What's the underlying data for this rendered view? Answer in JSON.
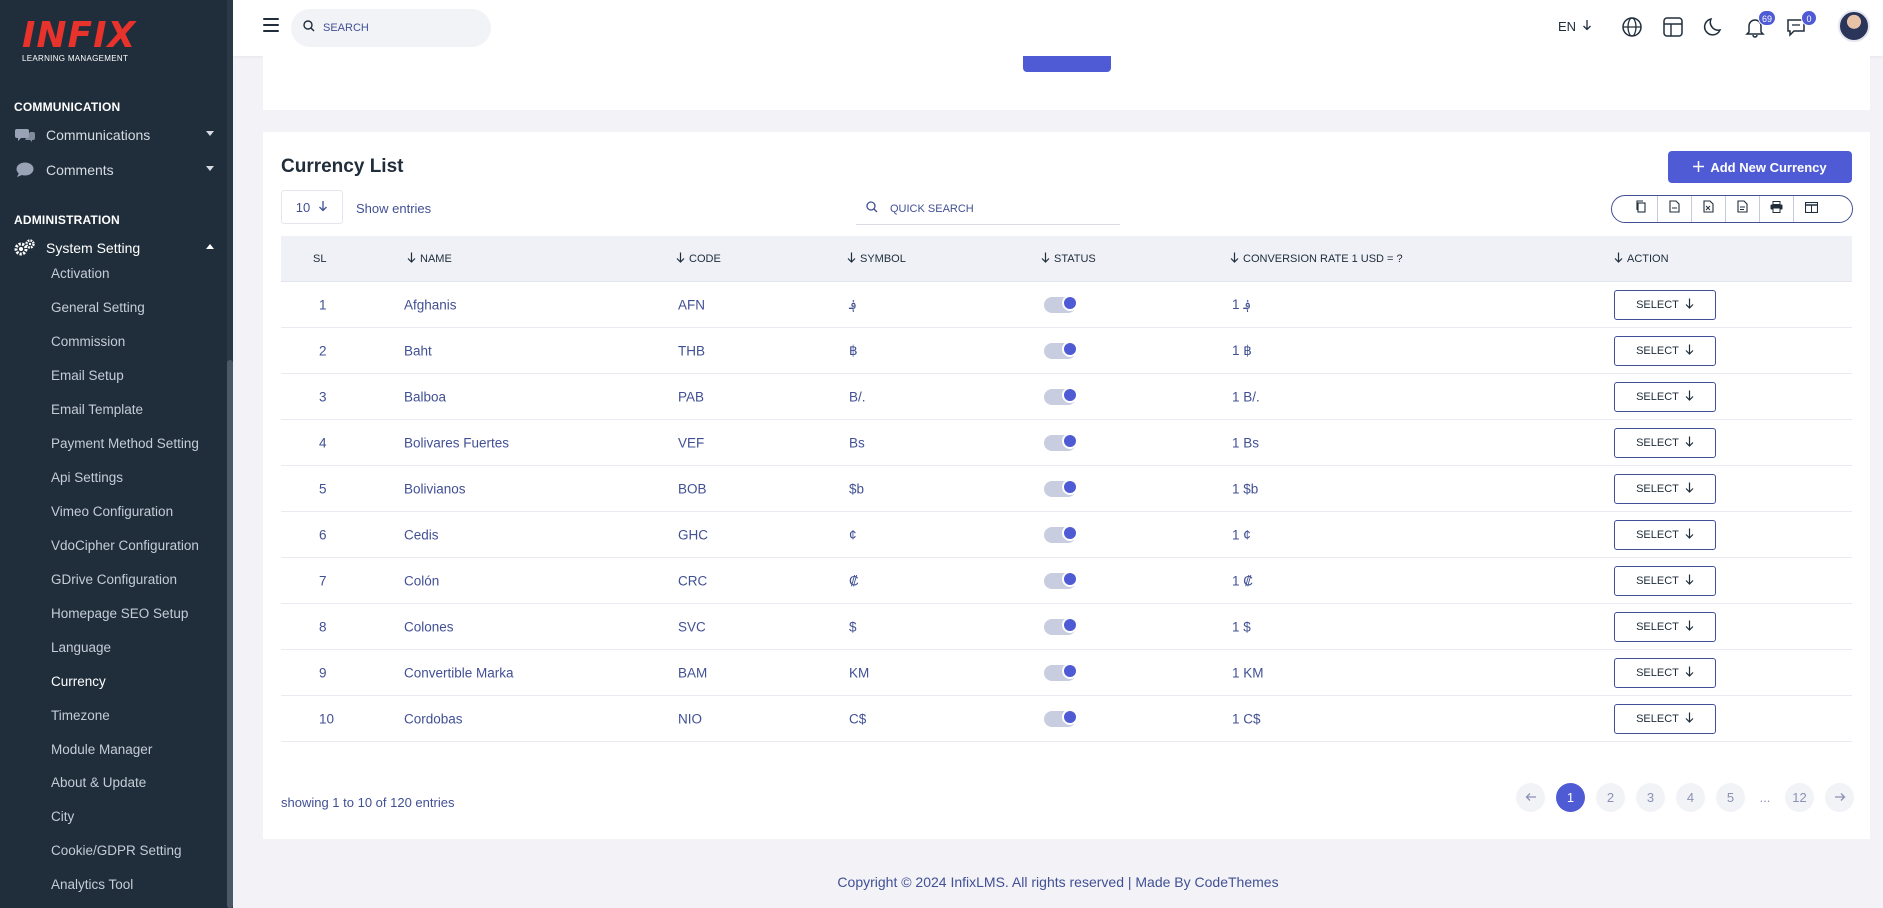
{
  "brand": {
    "logo_main": "INFIX",
    "logo_sub": "LEARNING MANAGEMENT"
  },
  "sidebar": {
    "sections": [
      {
        "title": "COMMUNICATION"
      },
      {
        "title": "ADMINISTRATION"
      }
    ],
    "communication_items": [
      {
        "label": "Communications",
        "icon": "chat-bubbles-icon"
      },
      {
        "label": "Comments",
        "icon": "comment-icon"
      }
    ],
    "system_setting": {
      "label": "System Setting",
      "icon": "gears-icon"
    },
    "sub_items": [
      "Activation",
      "General Setting",
      "Commission",
      "Email Setup",
      "Email Template",
      "Payment Method Setting",
      "Api Settings",
      "Vimeo Configuration",
      "VdoCipher Configuration",
      "GDrive Configuration",
      "Homepage SEO Setup",
      "Language",
      "Currency",
      "Timezone",
      "Module Manager",
      "About & Update",
      "City",
      "Cookie/GDPR Setting",
      "Analytics Tool"
    ],
    "active_sub_item": "Currency"
  },
  "header": {
    "search_placeholder": "SEARCH",
    "language": "EN",
    "notifications_count": "69",
    "messages_count": "0"
  },
  "card": {
    "title": "Currency List",
    "add_button": "Add New Currency",
    "entries_value": "10",
    "entries_label": "Show entries",
    "quick_search_placeholder": "QUICK SEARCH",
    "export_icons": [
      "copy-icon",
      "csv-icon",
      "excel-icon",
      "pdf-icon",
      "print-icon",
      "columns-icon"
    ]
  },
  "table": {
    "headers": {
      "sl": "SL",
      "name": "NAME",
      "code": "CODE",
      "symbol": "SYMBOL",
      "status": "STATUS",
      "rate": "CONVERSION RATE 1 USD = ?",
      "action": "ACTION"
    },
    "rows": [
      {
        "sl": "1",
        "name": "Afghanis",
        "code": "AFN",
        "symbol": "؋",
        "rate": "1 ؋",
        "status": true
      },
      {
        "sl": "2",
        "name": "Baht",
        "code": "THB",
        "symbol": "฿",
        "rate": "1 ฿",
        "status": true
      },
      {
        "sl": "3",
        "name": "Balboa",
        "code": "PAB",
        "symbol": "B/.",
        "rate": "1 B/.",
        "status": true
      },
      {
        "sl": "4",
        "name": "Bolivares Fuertes",
        "code": "VEF",
        "symbol": "Bs",
        "rate": "1 Bs",
        "status": true
      },
      {
        "sl": "5",
        "name": "Bolivianos",
        "code": "BOB",
        "symbol": "$b",
        "rate": "1 $b",
        "status": true
      },
      {
        "sl": "6",
        "name": "Cedis",
        "code": "GHC",
        "symbol": "¢",
        "rate": "1 ¢",
        "status": true
      },
      {
        "sl": "7",
        "name": "Colón",
        "code": "CRC",
        "symbol": "₡",
        "rate": "1 ₡",
        "status": true
      },
      {
        "sl": "8",
        "name": "Colones",
        "code": "SVC",
        "symbol": "$",
        "rate": "1 $",
        "status": true
      },
      {
        "sl": "9",
        "name": "Convertible Marka",
        "code": "BAM",
        "symbol": "KM",
        "rate": "1 KM",
        "status": true
      },
      {
        "sl": "10",
        "name": "Cordobas",
        "code": "NIO",
        "symbol": "C$",
        "rate": "1 C$",
        "status": true
      }
    ],
    "select_label": "SELECT"
  },
  "pagination": {
    "showing": "showing 1 to 10 of 120 entries",
    "pages": [
      "1",
      "2",
      "3",
      "4",
      "5"
    ],
    "ellipsis": "...",
    "last_page": "12",
    "current": "1"
  },
  "footer": {
    "text": "Copyright © 2024 InfixLMS. All rights reserved | Made By CodeThemes"
  },
  "colors": {
    "accent": "#4e5bd4",
    "sidebar_bg": "#202e3b",
    "text": "#415094"
  }
}
